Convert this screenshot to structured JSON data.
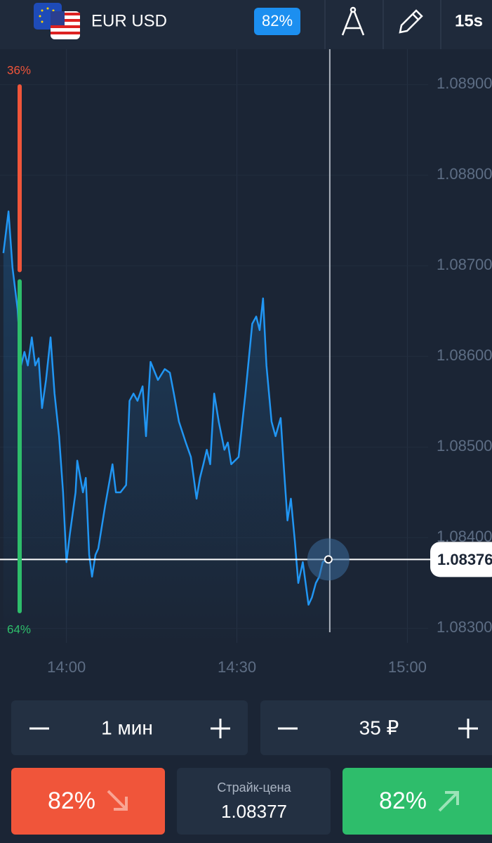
{
  "header": {
    "pair": "EUR USD",
    "payout": "82%",
    "timeframe": "15s"
  },
  "chart_data": {
    "type": "line",
    "x": [
      828.9,
      829.8,
      830.5,
      831.4,
      832.0,
      832.6,
      833.2,
      833.9,
      834.5,
      835.1,
      835.7,
      836.4,
      837.2,
      837.9,
      838.7,
      839.4,
      840.0,
      840.6,
      841.6,
      841.9,
      842.9,
      843.4,
      844.0,
      844.5,
      845.1,
      845.6,
      846.8,
      848.1,
      848.7,
      849.5,
      850.5,
      851.1,
      851.8,
      852.5,
      853.4,
      854.0,
      854.8,
      856.1,
      857.3,
      858.2,
      858.9,
      859.8,
      861.0,
      861.9,
      862.9,
      863.5,
      864.1,
      864.7,
      865.3,
      866.0,
      866.8,
      867.8,
      868.4,
      869.0,
      870.3,
      871.5,
      872.7,
      873.4,
      874.0,
      874.6,
      875.2,
      876.1,
      876.8,
      877.7,
      878.3,
      878.9,
      879.5,
      880.2,
      880.8,
      881.6,
      882.6,
      883.2,
      883.9,
      884.5,
      885.1,
      886.1
    ],
    "series": [
      {
        "color": "#2196f3",
        "values": [
          1.08714,
          1.0876,
          1.08698,
          1.08652,
          1.0859,
          1.08605,
          1.0859,
          1.08621,
          1.0859,
          1.08598,
          1.08543,
          1.08574,
          1.08621,
          1.08559,
          1.08512,
          1.0845,
          1.08373,
          1.08404,
          1.0845,
          1.08485,
          1.0845,
          1.08466,
          1.08381,
          1.08357,
          1.08381,
          1.08388,
          1.08435,
          1.08481,
          1.0845,
          1.0845,
          1.08458,
          1.08551,
          1.08559,
          1.08551,
          1.08567,
          1.08512,
          1.08594,
          1.08574,
          1.08586,
          1.08582,
          1.08559,
          1.08528,
          1.08505,
          1.08489,
          1.08443,
          1.08466,
          1.08481,
          1.08497,
          1.08481,
          1.08559,
          1.08528,
          1.08497,
          1.08505,
          1.08481,
          1.08489,
          1.08559,
          1.08636,
          1.08644,
          1.08629,
          1.08664,
          1.0859,
          1.08528,
          1.08512,
          1.08532,
          1.08474,
          1.08419,
          1.08443,
          1.08396,
          1.0835,
          1.08373,
          1.08326,
          1.08334,
          1.0835,
          1.08357,
          1.08373,
          1.08377
        ]
      }
    ],
    "xlim": [
      828.3,
      914.9
    ],
    "xticks": [
      {
        "value": 840,
        "label": "14:00"
      },
      {
        "value": 870,
        "label": "14:30"
      },
      {
        "value": 900,
        "label": "15:00"
      }
    ],
    "ylim": [
      1.08284,
      1.08939
    ],
    "yticks": [
      {
        "value": 1.089,
        "label": "1.08900"
      },
      {
        "value": 1.088,
        "label": "1.08800"
      },
      {
        "value": 1.087,
        "label": "1.08700"
      },
      {
        "value": 1.086,
        "label": "1.08600"
      },
      {
        "value": 1.085,
        "label": "1.08500"
      },
      {
        "value": 1.084,
        "label": "1.08400"
      },
      {
        "value": 1.083,
        "label": "1.08300"
      }
    ],
    "grid": true,
    "current_price": 1.08376,
    "sentiment": {
      "values": [
        36,
        64
      ],
      "value_labels": [
        "36%",
        "64%"
      ],
      "colors": [
        "#f0553a",
        "#2ebd6b"
      ]
    }
  },
  "controls": {
    "duration": "1 мин",
    "amount": "35 ₽",
    "put_payout": "82%",
    "call_payout": "82%",
    "strike_label": "Страйк-цена",
    "strike_value": "1.08377"
  }
}
